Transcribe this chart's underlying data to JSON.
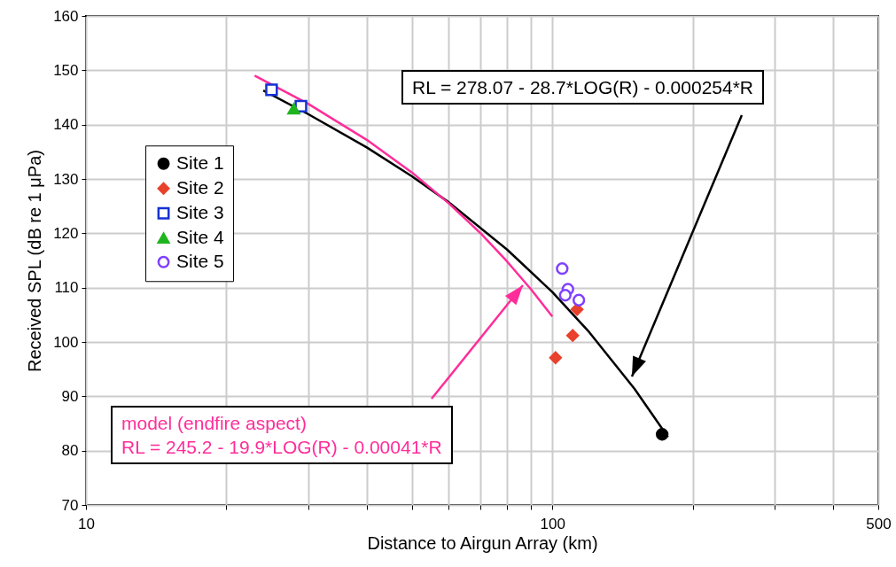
{
  "chart_data": {
    "type": "scatter",
    "xlabel": "Distance to Airgun Array (km)",
    "ylabel": "Received SPL (dB re 1 μPa)",
    "log": "x",
    "xlim": [
      10,
      500
    ],
    "ylim": [
      70,
      160
    ],
    "xticks": [
      10,
      {
        "value": 20,
        "label": null
      },
      {
        "value": 30,
        "label": null
      },
      {
        "value": 40,
        "label": null
      },
      {
        "value": 50,
        "label": null
      },
      {
        "value": 60,
        "label": null
      },
      {
        "value": 70,
        "label": null
      },
      {
        "value": 80,
        "label": null
      },
      {
        "value": 90,
        "label": null
      },
      100,
      {
        "value": 200,
        "label": null
      },
      {
        "value": 300,
        "label": null
      },
      {
        "value": 400,
        "label": null
      },
      500
    ],
    "yticks": [
      70,
      80,
      90,
      100,
      110,
      120,
      130,
      140,
      150,
      160
    ],
    "grid": true,
    "legend": "left",
    "series": [
      {
        "name": "Site 1",
        "color": "#000000",
        "marker": "circle",
        "x": [
          172
        ],
        "values": [
          83
        ]
      },
      {
        "name": "Site 2",
        "color": "#e8412c",
        "marker": "diamond",
        "x": [
          101.6,
          110.6,
          113
        ],
        "values": [
          97.1,
          101.2,
          106
        ]
      },
      {
        "name": "Site 3",
        "color": "#1432d2",
        "marker": "square",
        "x": [
          25,
          28.9
        ],
        "values": [
          146.4,
          143.4
        ]
      },
      {
        "name": "Site 4",
        "color": "#1fb51f",
        "marker": "triangle",
        "x": [
          27.9
        ],
        "values": [
          142.9
        ]
      },
      {
        "name": "Site 5",
        "color": "#8040ff",
        "marker": "circle",
        "x": [
          105,
          108,
          106.6,
          114
        ],
        "values": [
          113.5,
          109.7,
          108.6,
          107.7
        ]
      },
      {
        "type": "line",
        "color": "#000000",
        "x": [
          24,
          30,
          40,
          50,
          60,
          80,
          100,
          120,
          150,
          177
        ],
        "values": [
          146.3,
          141.9,
          135.8,
          130.5,
          125.7,
          117.0,
          109.2,
          101.8,
          91.4,
          82.5
        ]
      },
      {
        "type": "line",
        "color": "#ff2d9a",
        "x": [
          23,
          30,
          40,
          50,
          60,
          70,
          80,
          90,
          100
        ],
        "values": [
          149.0,
          143.8,
          137.2,
          131.2,
          125.5,
          120.1,
          114.8,
          109.7,
          104.7
        ]
      }
    ],
    "annotations": [
      "RL = 278.07 - 28.7*LOG(R) - 0.000254*R",
      "model (endfire aspect)",
      "RL = 245.2 - 19.9*LOG(R) - 0.00041*R"
    ]
  }
}
